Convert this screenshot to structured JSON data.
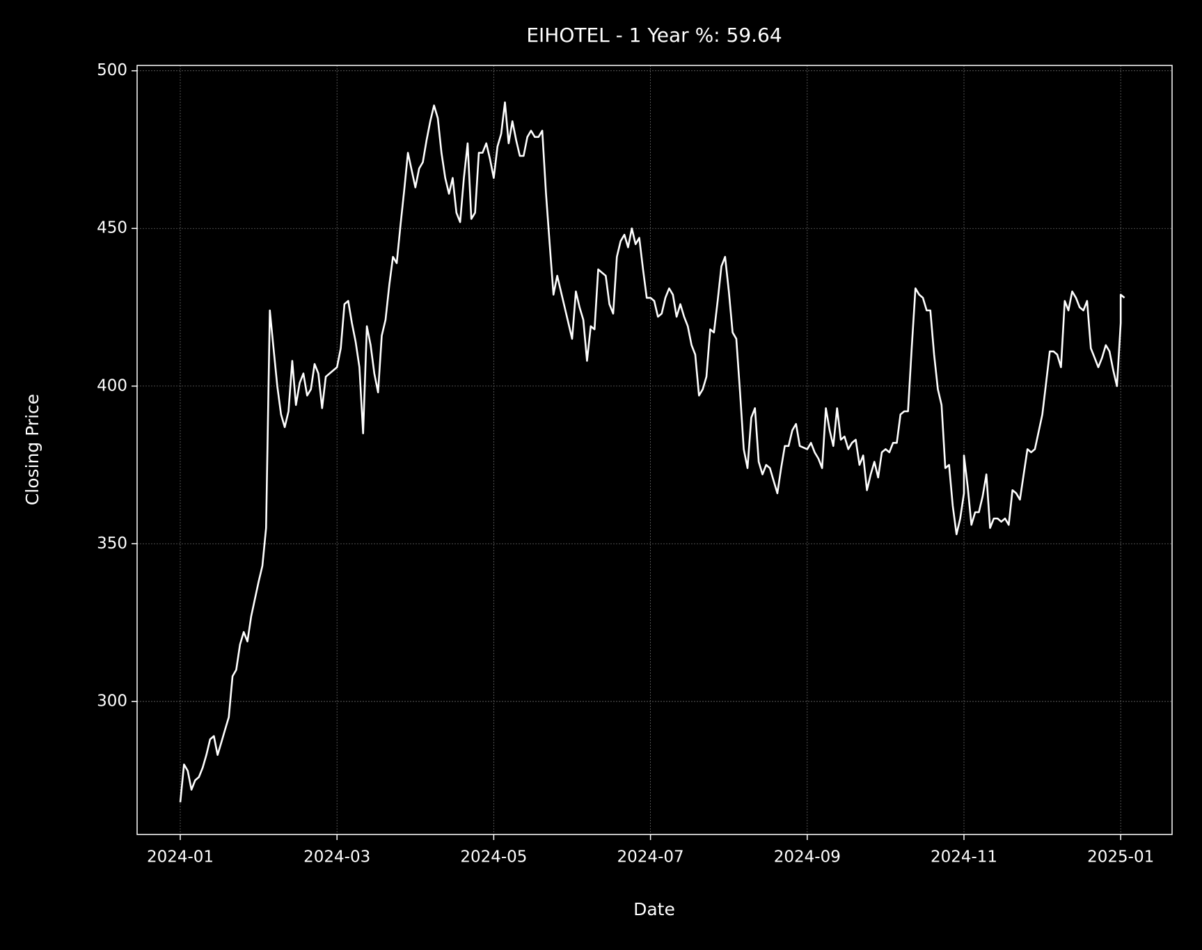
{
  "chart_data": {
    "type": "line",
    "title": "EIHOTEL - 1 Year %: 59.64",
    "x_label": "Date",
    "y_label": "Closing Price",
    "x": [
      "2024-01",
      "2024-01",
      "2024-01",
      "2024-01",
      "2024-01",
      "2024-01",
      "2024-01",
      "2024-01",
      "2024-01",
      "2024-01",
      "2024-01",
      "2024-01",
      "2024-01",
      "2024-01",
      "2024-01",
      "2024-01",
      "2024-01",
      "2024-01",
      "2024-01",
      "2024-01",
      "2024-02",
      "2024-02",
      "2024-02",
      "2024-02",
      "2024-02",
      "2024-02",
      "2024-02",
      "2024-02",
      "2024-02",
      "2024-02",
      "2024-02",
      "2024-02",
      "2024-02",
      "2024-02",
      "2024-02",
      "2024-02",
      "2024-02",
      "2024-02",
      "2024-02",
      "2024-03",
      "2024-03",
      "2024-03",
      "2024-03",
      "2024-03",
      "2024-03",
      "2024-03",
      "2024-03",
      "2024-03",
      "2024-03",
      "2024-03",
      "2024-03",
      "2024-03",
      "2024-03",
      "2024-03",
      "2024-03",
      "2024-03",
      "2024-03",
      "2024-03",
      "2024-03",
      "2024-04",
      "2024-04",
      "2024-04",
      "2024-04",
      "2024-04",
      "2024-04",
      "2024-04",
      "2024-04",
      "2024-04",
      "2024-04",
      "2024-04",
      "2024-04",
      "2024-04",
      "2024-04",
      "2024-04",
      "2024-04",
      "2024-04",
      "2024-04",
      "2024-04",
      "2024-04",
      "2024-04",
      "2024-05",
      "2024-05",
      "2024-05",
      "2024-05",
      "2024-05",
      "2024-05",
      "2024-05",
      "2024-05",
      "2024-05",
      "2024-05",
      "2024-05",
      "2024-05",
      "2024-05",
      "2024-05",
      "2024-05",
      "2024-05",
      "2024-05",
      "2024-05",
      "2024-06",
      "2024-06",
      "2024-06",
      "2024-06",
      "2024-06",
      "2024-06",
      "2024-06",
      "2024-06",
      "2024-06",
      "2024-06",
      "2024-06",
      "2024-06",
      "2024-06",
      "2024-06",
      "2024-06",
      "2024-06",
      "2024-06",
      "2024-06",
      "2024-06",
      "2024-06",
      "2024-06",
      "2024-07",
      "2024-07",
      "2024-07",
      "2024-07",
      "2024-07",
      "2024-07",
      "2024-07",
      "2024-07",
      "2024-07",
      "2024-07",
      "2024-07",
      "2024-07",
      "2024-07",
      "2024-07",
      "2024-07",
      "2024-07",
      "2024-07",
      "2024-07",
      "2024-07",
      "2024-07",
      "2024-07",
      "2024-08",
      "2024-08",
      "2024-08",
      "2024-08",
      "2024-08",
      "2024-08",
      "2024-08",
      "2024-08",
      "2024-08",
      "2024-08",
      "2024-08",
      "2024-08",
      "2024-08",
      "2024-08",
      "2024-08",
      "2024-08",
      "2024-08",
      "2024-08",
      "2024-08",
      "2024-08",
      "2024-09",
      "2024-09",
      "2024-09",
      "2024-09",
      "2024-09",
      "2024-09",
      "2024-09",
      "2024-09",
      "2024-09",
      "2024-09",
      "2024-09",
      "2024-09",
      "2024-09",
      "2024-09",
      "2024-09",
      "2024-09",
      "2024-09",
      "2024-09",
      "2024-09",
      "2024-09",
      "2024-09",
      "2024-10",
      "2024-10",
      "2024-10",
      "2024-10",
      "2024-10",
      "2024-10",
      "2024-10",
      "2024-10",
      "2024-10",
      "2024-10",
      "2024-10",
      "2024-10",
      "2024-10",
      "2024-10",
      "2024-10",
      "2024-10",
      "2024-10",
      "2024-10",
      "2024-10",
      "2024-10",
      "2024-10",
      "2024-10",
      "2024-11",
      "2024-11",
      "2024-11",
      "2024-11",
      "2024-11",
      "2024-11",
      "2024-11",
      "2024-11",
      "2024-11",
      "2024-11",
      "2024-11",
      "2024-11",
      "2024-11",
      "2024-11",
      "2024-11",
      "2024-11",
      "2024-11",
      "2024-11",
      "2024-11",
      "2024-11",
      "2024-12",
      "2024-12",
      "2024-12",
      "2024-12",
      "2024-12",
      "2024-12",
      "2024-12",
      "2024-12",
      "2024-12",
      "2024-12",
      "2024-12",
      "2024-12",
      "2024-12",
      "2024-12",
      "2024-12",
      "2024-12",
      "2024-12",
      "2024-12",
      "2024-12",
      "2024-12",
      "2024-12",
      "2024-12",
      "2025-01",
      "2025-01"
    ],
    "values": [
      268,
      280,
      278,
      272,
      275,
      276,
      279,
      283,
      288,
      289,
      283,
      287,
      291,
      295,
      308,
      310,
      318,
      322,
      319,
      327,
      338,
      343,
      355,
      424,
      412,
      400,
      391,
      387,
      392,
      408,
      394,
      401,
      404,
      397,
      399,
      407,
      404,
      393,
      403,
      406,
      412,
      426,
      427,
      420,
      414,
      406,
      385,
      419,
      413,
      404,
      398,
      416,
      421,
      432,
      441,
      439,
      451,
      462,
      474,
      463,
      469,
      471,
      478,
      484,
      489,
      485,
      474,
      466,
      461,
      466,
      455,
      452,
      466,
      477,
      453,
      455,
      474,
      474,
      477,
      472,
      466,
      476,
      480,
      490,
      477,
      484,
      478,
      473,
      473,
      479,
      481,
      479,
      479,
      481,
      461,
      445,
      429,
      435,
      415,
      430,
      425,
      421,
      408,
      419,
      418,
      437,
      436,
      435,
      426,
      423,
      441,
      446,
      448,
      444,
      450,
      445,
      447,
      437,
      428,
      428,
      427,
      422,
      423,
      428,
      431,
      429,
      422,
      426,
      422,
      419,
      413,
      410,
      397,
      399,
      403,
      418,
      417,
      427,
      438,
      441,
      430,
      417,
      415,
      398,
      380,
      374,
      390,
      393,
      376,
      372,
      375,
      374,
      370,
      366,
      374,
      381,
      381,
      386,
      388,
      381,
      380,
      382,
      379,
      377,
      374,
      393,
      386,
      381,
      393,
      383,
      384,
      380,
      382,
      383,
      375,
      378,
      367,
      372,
      376,
      371,
      379,
      380,
      379,
      382,
      382,
      391,
      392,
      392,
      412,
      431,
      429,
      428,
      424,
      424,
      410,
      399,
      394,
      374,
      375,
      362,
      353,
      358,
      366,
      378,
      368,
      356,
      360,
      360,
      365,
      372,
      355,
      358,
      358,
      357,
      358,
      356,
      367,
      366,
      364,
      372,
      380,
      379,
      380,
      391,
      401,
      411,
      411,
      410,
      406,
      427,
      424,
      430,
      428,
      425,
      424,
      427,
      412,
      409,
      406,
      409,
      413,
      411,
      405,
      400,
      420,
      429,
      428
    ],
    "color": "#ffffff",
    "xticks": [
      "2024-01",
      "2024-03",
      "2024-05",
      "2024-07",
      "2024-09",
      "2024-11",
      "2025-01"
    ],
    "ylim": [
      257.8,
      501.7
    ],
    "yticks": [
      300,
      350,
      400,
      450,
      500
    ],
    "grid": true
  }
}
